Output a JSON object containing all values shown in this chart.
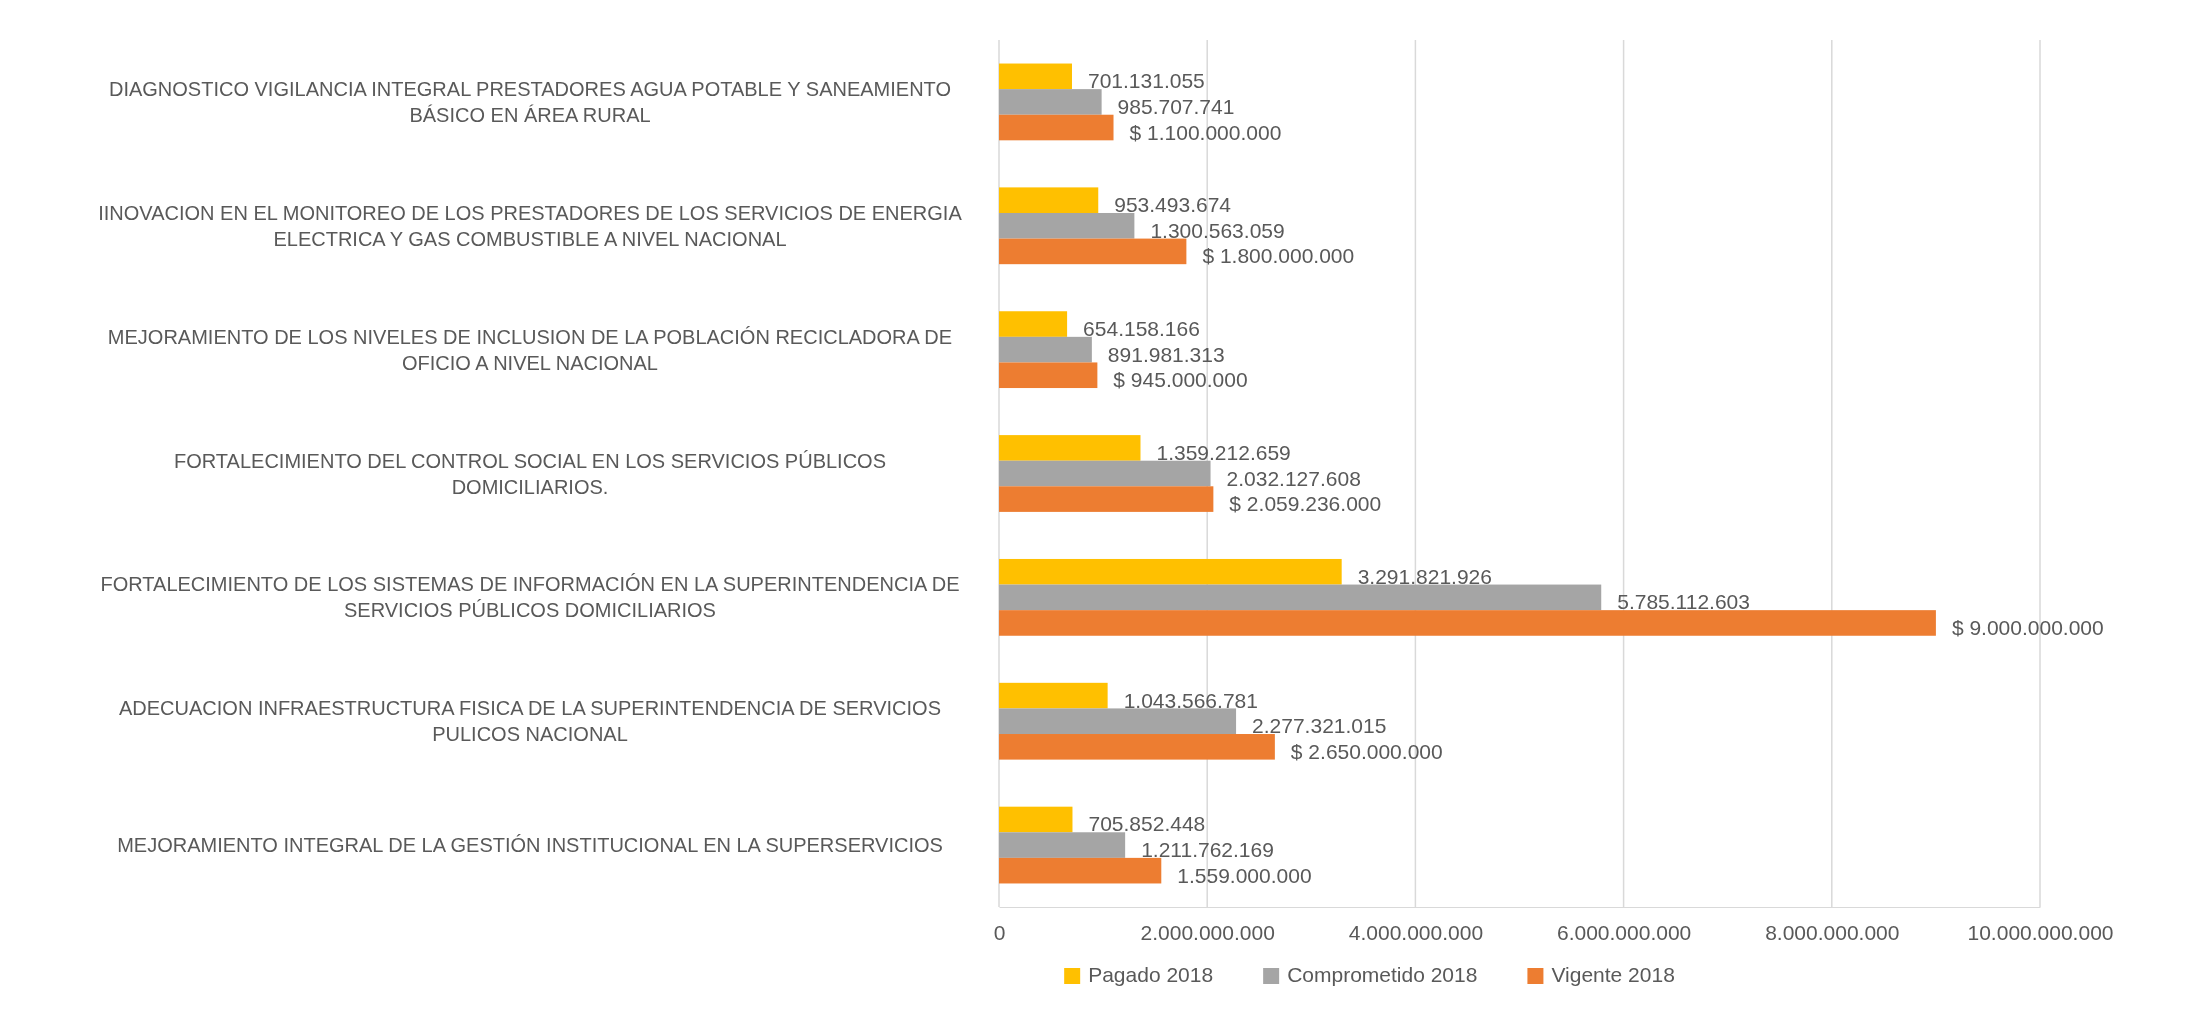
{
  "chart_data": {
    "type": "bar",
    "orientation": "horizontal",
    "categories": [
      "DIAGNOSTICO VIGILANCIA INTEGRAL PRESTADORES AGUA POTABLE Y SANEAMIENTO BÁSICO EN ÁREA RURAL",
      "IINOVACION EN EL MONITOREO DE LOS PRESTADORES DE LOS SERVICIOS DE ENERGIA ELECTRICA Y GAS COMBUSTIBLE  A NIVEL NACIONAL",
      "MEJORAMIENTO DE LOS NIVELES DE INCLUSION DE LA POBLACIÓN RECICLADORA DE OFICIO A NIVEL NACIONAL",
      "FORTALECIMIENTO DEL CONTROL SOCIAL EN LOS SERVICIOS PÚBLICOS DOMICILIARIOS.",
      "FORTALECIMIENTO DE LOS SISTEMAS DE INFORMACIÓN EN LA SUPERINTENDENCIA DE SERVICIOS PÚBLICOS DOMICILIARIOS",
      "ADECUACION INFRAESTRUCTURA FISICA DE LA SUPERINTENDENCIA DE SERVICIOS PULICOS NACIONAL",
      "MEJORAMIENTO INTEGRAL DE LA GESTIÓN INSTITUCIONAL EN LA SUPERSERVICIOS"
    ],
    "series": [
      {
        "name": "Pagado 2018",
        "color": "#ffc000",
        "values": [
          701131055,
          953493674,
          654158166,
          1359212659,
          3291821926,
          1043566781,
          705852448
        ],
        "value_labels": [
          "701.131.055",
          "953.493.674",
          "654.158.166",
          "1.359.212.659",
          "3.291.821.926",
          "1.043.566.781",
          "705.852.448"
        ]
      },
      {
        "name": "Comprometido 2018",
        "color": "#a5a5a5",
        "values": [
          985707741,
          1300563059,
          891981313,
          2032127608,
          5785112603,
          2277321015,
          1211762169
        ],
        "value_labels": [
          "985.707.741",
          "1.300.563.059",
          "891.981.313",
          "2.032.127.608",
          "5.785.112.603",
          "2.277.321.015",
          "1.211.762.169"
        ]
      },
      {
        "name": "Vigente 2018",
        "color": "#ed7d31",
        "values": [
          1100000000,
          1800000000,
          945000000,
          2059236000,
          9000000000,
          2650000000,
          1559000000
        ],
        "value_labels": [
          "$ 1.100.000.000",
          "$ 1.800.000.000",
          "$ 945.000.000",
          "$ 2.059.236.000",
          "$ 9.000.000.000",
          "$ 2.650.000.000",
          "1.559.000.000"
        ]
      }
    ],
    "xlim": [
      0,
      10000000000
    ],
    "xticks": [
      0,
      {
        "value": 2000000000,
        "label": "2.000.000.000"
      },
      {
        "value": 4000000000,
        "label": "4.000.000.000"
      },
      {
        "value": 6000000000,
        "label": "6.000.000.000"
      },
      {
        "value": 8000000000,
        "label": "8.000.000.000"
      },
      {
        "value": 10000000000,
        "label": "10.000.000.000"
      }
    ],
    "grid": "x",
    "legend": "bottom"
  }
}
